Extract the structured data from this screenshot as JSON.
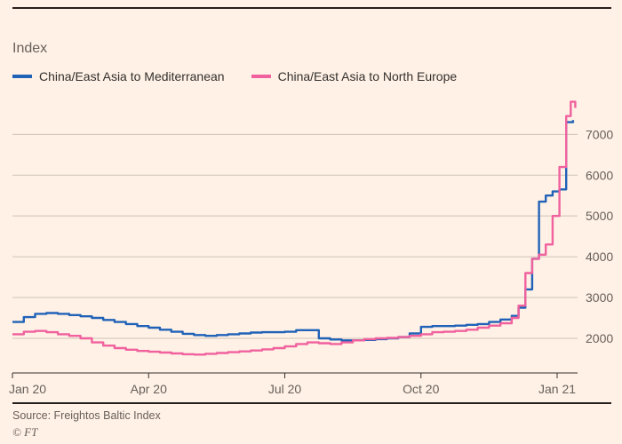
{
  "page": {
    "title": "Index",
    "source": "Source: Freightos Baltic Index",
    "ft_mark": "© FT",
    "background": "#FFF1E5"
  },
  "legend": [
    {
      "label": "China/East Asia to Mediterranean",
      "color": "#2062B8"
    },
    {
      "label": "China/East Asia to North Europe",
      "color": "#F0619E"
    }
  ],
  "chart_data": {
    "type": "line",
    "title": "Index",
    "xlabel": "",
    "ylabel": "Index",
    "x_unit": "months_since_jan_2020",
    "xlim": [
      0,
      12.45
    ],
    "ylim": [
      1150,
      7900
    ],
    "grid": "horizontal",
    "legend_position": "top-left",
    "y_ticks": [
      2000,
      3000,
      4000,
      5000,
      6000,
      7000
    ],
    "x_ticks": [
      {
        "pos": 0,
        "label": "Jan 20"
      },
      {
        "pos": 3,
        "label": "Apr 20"
      },
      {
        "pos": 6,
        "label": "Jul 20"
      },
      {
        "pos": 9,
        "label": "Oct 20"
      },
      {
        "pos": 12,
        "label": "Jan 21"
      }
    ],
    "series": [
      {
        "name": "China/East Asia to Mediterranean",
        "color": "#2062B8",
        "points": [
          [
            0,
            2400
          ],
          [
            0.25,
            2520
          ],
          [
            0.5,
            2600
          ],
          [
            0.75,
            2620
          ],
          [
            1,
            2600
          ],
          [
            1.25,
            2570
          ],
          [
            1.5,
            2540
          ],
          [
            1.75,
            2500
          ],
          [
            2,
            2450
          ],
          [
            2.25,
            2400
          ],
          [
            2.5,
            2350
          ],
          [
            2.75,
            2300
          ],
          [
            3,
            2260
          ],
          [
            3.25,
            2210
          ],
          [
            3.5,
            2160
          ],
          [
            3.75,
            2110
          ],
          [
            4,
            2080
          ],
          [
            4.25,
            2060
          ],
          [
            4.5,
            2080
          ],
          [
            4.75,
            2100
          ],
          [
            5,
            2120
          ],
          [
            5.25,
            2140
          ],
          [
            5.5,
            2150
          ],
          [
            5.75,
            2150
          ],
          [
            6,
            2160
          ],
          [
            6.25,
            2200
          ],
          [
            6.5,
            2200
          ],
          [
            6.75,
            2000
          ],
          [
            7,
            1970
          ],
          [
            7.25,
            1950
          ],
          [
            7.5,
            1950
          ],
          [
            7.75,
            1960
          ],
          [
            8,
            1980
          ],
          [
            8.25,
            2000
          ],
          [
            8.5,
            2030
          ],
          [
            8.75,
            2120
          ],
          [
            9,
            2280
          ],
          [
            9.25,
            2300
          ],
          [
            9.5,
            2300
          ],
          [
            9.75,
            2310
          ],
          [
            10,
            2330
          ],
          [
            10.25,
            2350
          ],
          [
            10.5,
            2400
          ],
          [
            10.75,
            2460
          ],
          [
            11,
            2550
          ],
          [
            11.15,
            2750
          ],
          [
            11.3,
            3200
          ],
          [
            11.45,
            3950
          ],
          [
            11.6,
            5350
          ],
          [
            11.75,
            5500
          ],
          [
            11.9,
            5600
          ],
          [
            12.05,
            5650
          ],
          [
            12.2,
            7300
          ],
          [
            12.35,
            7350
          ]
        ]
      },
      {
        "name": "China/East Asia to North Europe",
        "color": "#F0619E",
        "points": [
          [
            0,
            2100
          ],
          [
            0.25,
            2160
          ],
          [
            0.5,
            2180
          ],
          [
            0.75,
            2150
          ],
          [
            1,
            2100
          ],
          [
            1.25,
            2060
          ],
          [
            1.5,
            2000
          ],
          [
            1.75,
            1900
          ],
          [
            2,
            1820
          ],
          [
            2.25,
            1760
          ],
          [
            2.5,
            1720
          ],
          [
            2.75,
            1690
          ],
          [
            3,
            1670
          ],
          [
            3.25,
            1650
          ],
          [
            3.5,
            1630
          ],
          [
            3.75,
            1610
          ],
          [
            4,
            1600
          ],
          [
            4.25,
            1620
          ],
          [
            4.5,
            1640
          ],
          [
            4.75,
            1660
          ],
          [
            5,
            1680
          ],
          [
            5.25,
            1700
          ],
          [
            5.5,
            1730
          ],
          [
            5.75,
            1760
          ],
          [
            6,
            1800
          ],
          [
            6.25,
            1860
          ],
          [
            6.5,
            1900
          ],
          [
            6.75,
            1880
          ],
          [
            7,
            1860
          ],
          [
            7.25,
            1900
          ],
          [
            7.5,
            1950
          ],
          [
            7.75,
            1980
          ],
          [
            8,
            2000
          ],
          [
            8.25,
            2010
          ],
          [
            8.5,
            2030
          ],
          [
            8.75,
            2060
          ],
          [
            9,
            2100
          ],
          [
            9.25,
            2150
          ],
          [
            9.5,
            2160
          ],
          [
            9.75,
            2180
          ],
          [
            10,
            2210
          ],
          [
            10.25,
            2260
          ],
          [
            10.5,
            2310
          ],
          [
            10.75,
            2370
          ],
          [
            11,
            2500
          ],
          [
            11.15,
            2800
          ],
          [
            11.3,
            3600
          ],
          [
            11.45,
            3950
          ],
          [
            11.6,
            4050
          ],
          [
            11.75,
            4300
          ],
          [
            11.9,
            5000
          ],
          [
            12.05,
            6200
          ],
          [
            12.2,
            7450
          ],
          [
            12.3,
            7800
          ],
          [
            12.4,
            7650
          ]
        ]
      }
    ]
  }
}
